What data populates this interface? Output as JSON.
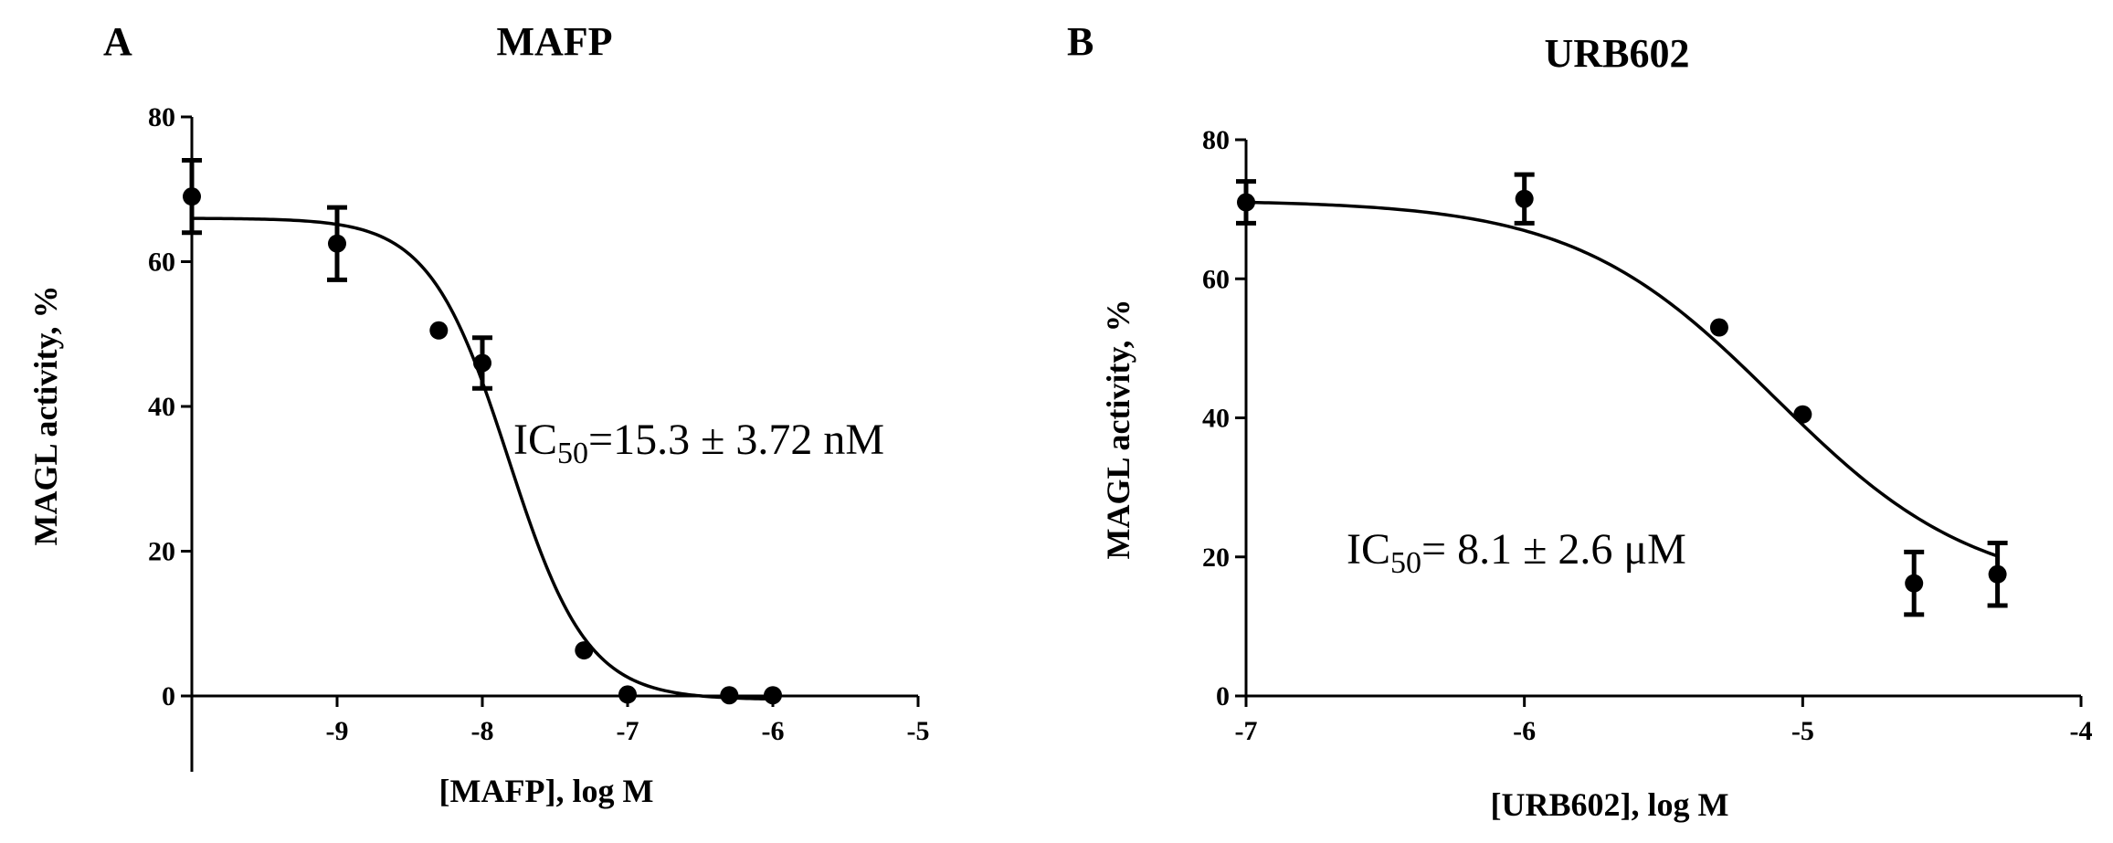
{
  "chart_data": [
    {
      "type": "scatter",
      "panel_label": "A",
      "title": "MAFP",
      "xlabel": "[MAFP], log M",
      "ylabel": "MAGL activity, %",
      "xlim": [
        -10,
        -5
      ],
      "ylim": [
        0,
        80
      ],
      "xticks": [
        -9,
        -8,
        -7,
        -6,
        -5
      ],
      "xtick_labels": [
        "-9",
        "-8",
        "-7",
        "-6",
        "-5"
      ],
      "yticks": [
        0,
        20,
        40,
        60,
        80
      ],
      "ytick_labels": [
        "0",
        "20",
        "40",
        "60",
        "80"
      ],
      "grid": false,
      "series": [
        {
          "x": [
            -10,
            -9,
            -8.3,
            -8,
            -7.3,
            -7,
            -6.3,
            -6
          ],
          "y": [
            69,
            62.5,
            50.5,
            46,
            6.3,
            0.2,
            0.1,
            0.1
          ],
          "error": [
            5,
            5,
            0,
            3.5,
            0,
            0,
            0,
            0
          ]
        }
      ],
      "fit": {
        "model": "four-parameter-logistic",
        "top": 66,
        "bottom": -0.5,
        "log_ic50": -7.82,
        "hill_slope": -1.6
      },
      "annotation": {
        "prefix": "IC",
        "subscript": "50",
        "suffix": "=15.3 ± 3.72  nM"
      }
    },
    {
      "type": "scatter",
      "panel_label": "B",
      "title": "URB602",
      "xlabel": "[URB602], log M",
      "ylabel": "MAGL activity, %",
      "xlim": [
        -7,
        -4
      ],
      "ylim": [
        0,
        80
      ],
      "xticks": [
        -7,
        -6,
        -5,
        -4
      ],
      "xtick_labels": [
        "-7",
        "-6",
        "-5",
        "-4"
      ],
      "yticks": [
        0,
        20,
        40,
        60,
        80
      ],
      "ytick_labels": [
        "0",
        "20",
        "40",
        "60",
        "80"
      ],
      "grid": false,
      "series": [
        {
          "x": [
            -7,
            -6,
            -5.3,
            -5,
            -4.6,
            -4.3
          ],
          "y": [
            71,
            71.5,
            53,
            40.5,
            16.2,
            17.5
          ],
          "error": [
            3,
            3.5,
            0,
            0,
            4.5,
            4.5
          ]
        }
      ],
      "fit": {
        "model": "four-parameter-logistic",
        "top": 71.3,
        "bottom": 14.5,
        "log_ic50": -5.1,
        "hill_slope": -1.2
      },
      "annotation": {
        "prefix": "IC",
        "subscript": "50",
        "suffix": "=  8.1 ± 2.6 μM"
      }
    }
  ]
}
